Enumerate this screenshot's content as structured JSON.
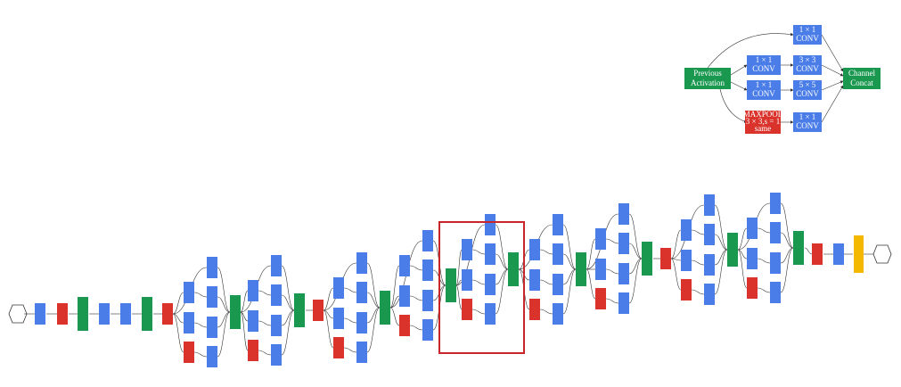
{
  "module": {
    "nodes": [
      {
        "lines": [
          "Previous",
          "Activation"
        ]
      },
      {
        "lines": [
          "1 × 1",
          "CONV"
        ]
      },
      {
        "lines": [
          "1 × 1",
          "CONV"
        ]
      },
      {
        "lines": [
          "MAXPOOL",
          "3 × 3,s = 1",
          "same"
        ]
      },
      {
        "lines": [
          "1 × 1",
          "CONV"
        ]
      },
      {
        "lines": [
          "3 × 3",
          "CONV"
        ]
      },
      {
        "lines": [
          "5 × 5",
          "CONV"
        ]
      },
      {
        "lines": [
          "1 × 1",
          "CONV"
        ]
      },
      {
        "lines": [
          "Channel",
          "Concat"
        ]
      }
    ]
  }
}
